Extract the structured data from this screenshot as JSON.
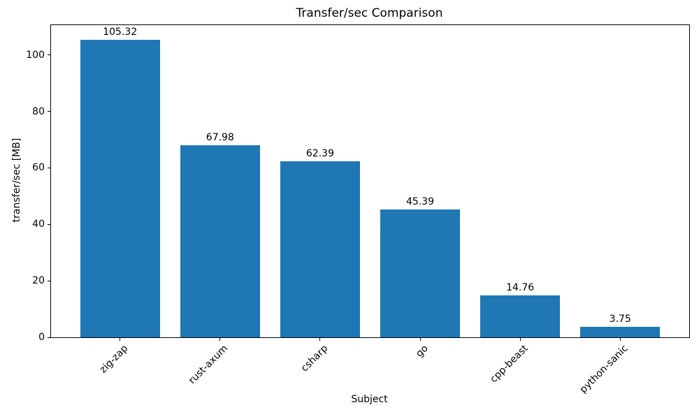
{
  "chart_data": {
    "type": "bar",
    "title": "Transfer/sec Comparison",
    "xlabel": "Subject",
    "ylabel": "transfer/sec [MB]",
    "categories": [
      "zig-zap",
      "rust-axum",
      "csharp",
      "go",
      "cpp-beast",
      "python-sanic"
    ],
    "values": [
      105.32,
      67.98,
      62.39,
      45.39,
      14.76,
      3.75
    ],
    "value_labels": [
      "105.32",
      "67.98",
      "62.39",
      "45.39",
      "14.76",
      "3.75"
    ],
    "series": [
      {
        "name": "transfer/sec",
        "values": [
          105.32,
          67.98,
          62.39,
          45.39,
          14.76,
          3.75
        ]
      }
    ],
    "bar_color": "#1f77b4",
    "text_color": "#000000",
    "spine_color": "#000000",
    "ylim": [
      0,
      110.59
    ],
    "yticks": [
      0,
      20,
      40,
      60,
      80,
      100
    ],
    "xtick_rotation_deg": 45,
    "bar_width_fraction": 0.8,
    "grid": false,
    "legend": null
  }
}
